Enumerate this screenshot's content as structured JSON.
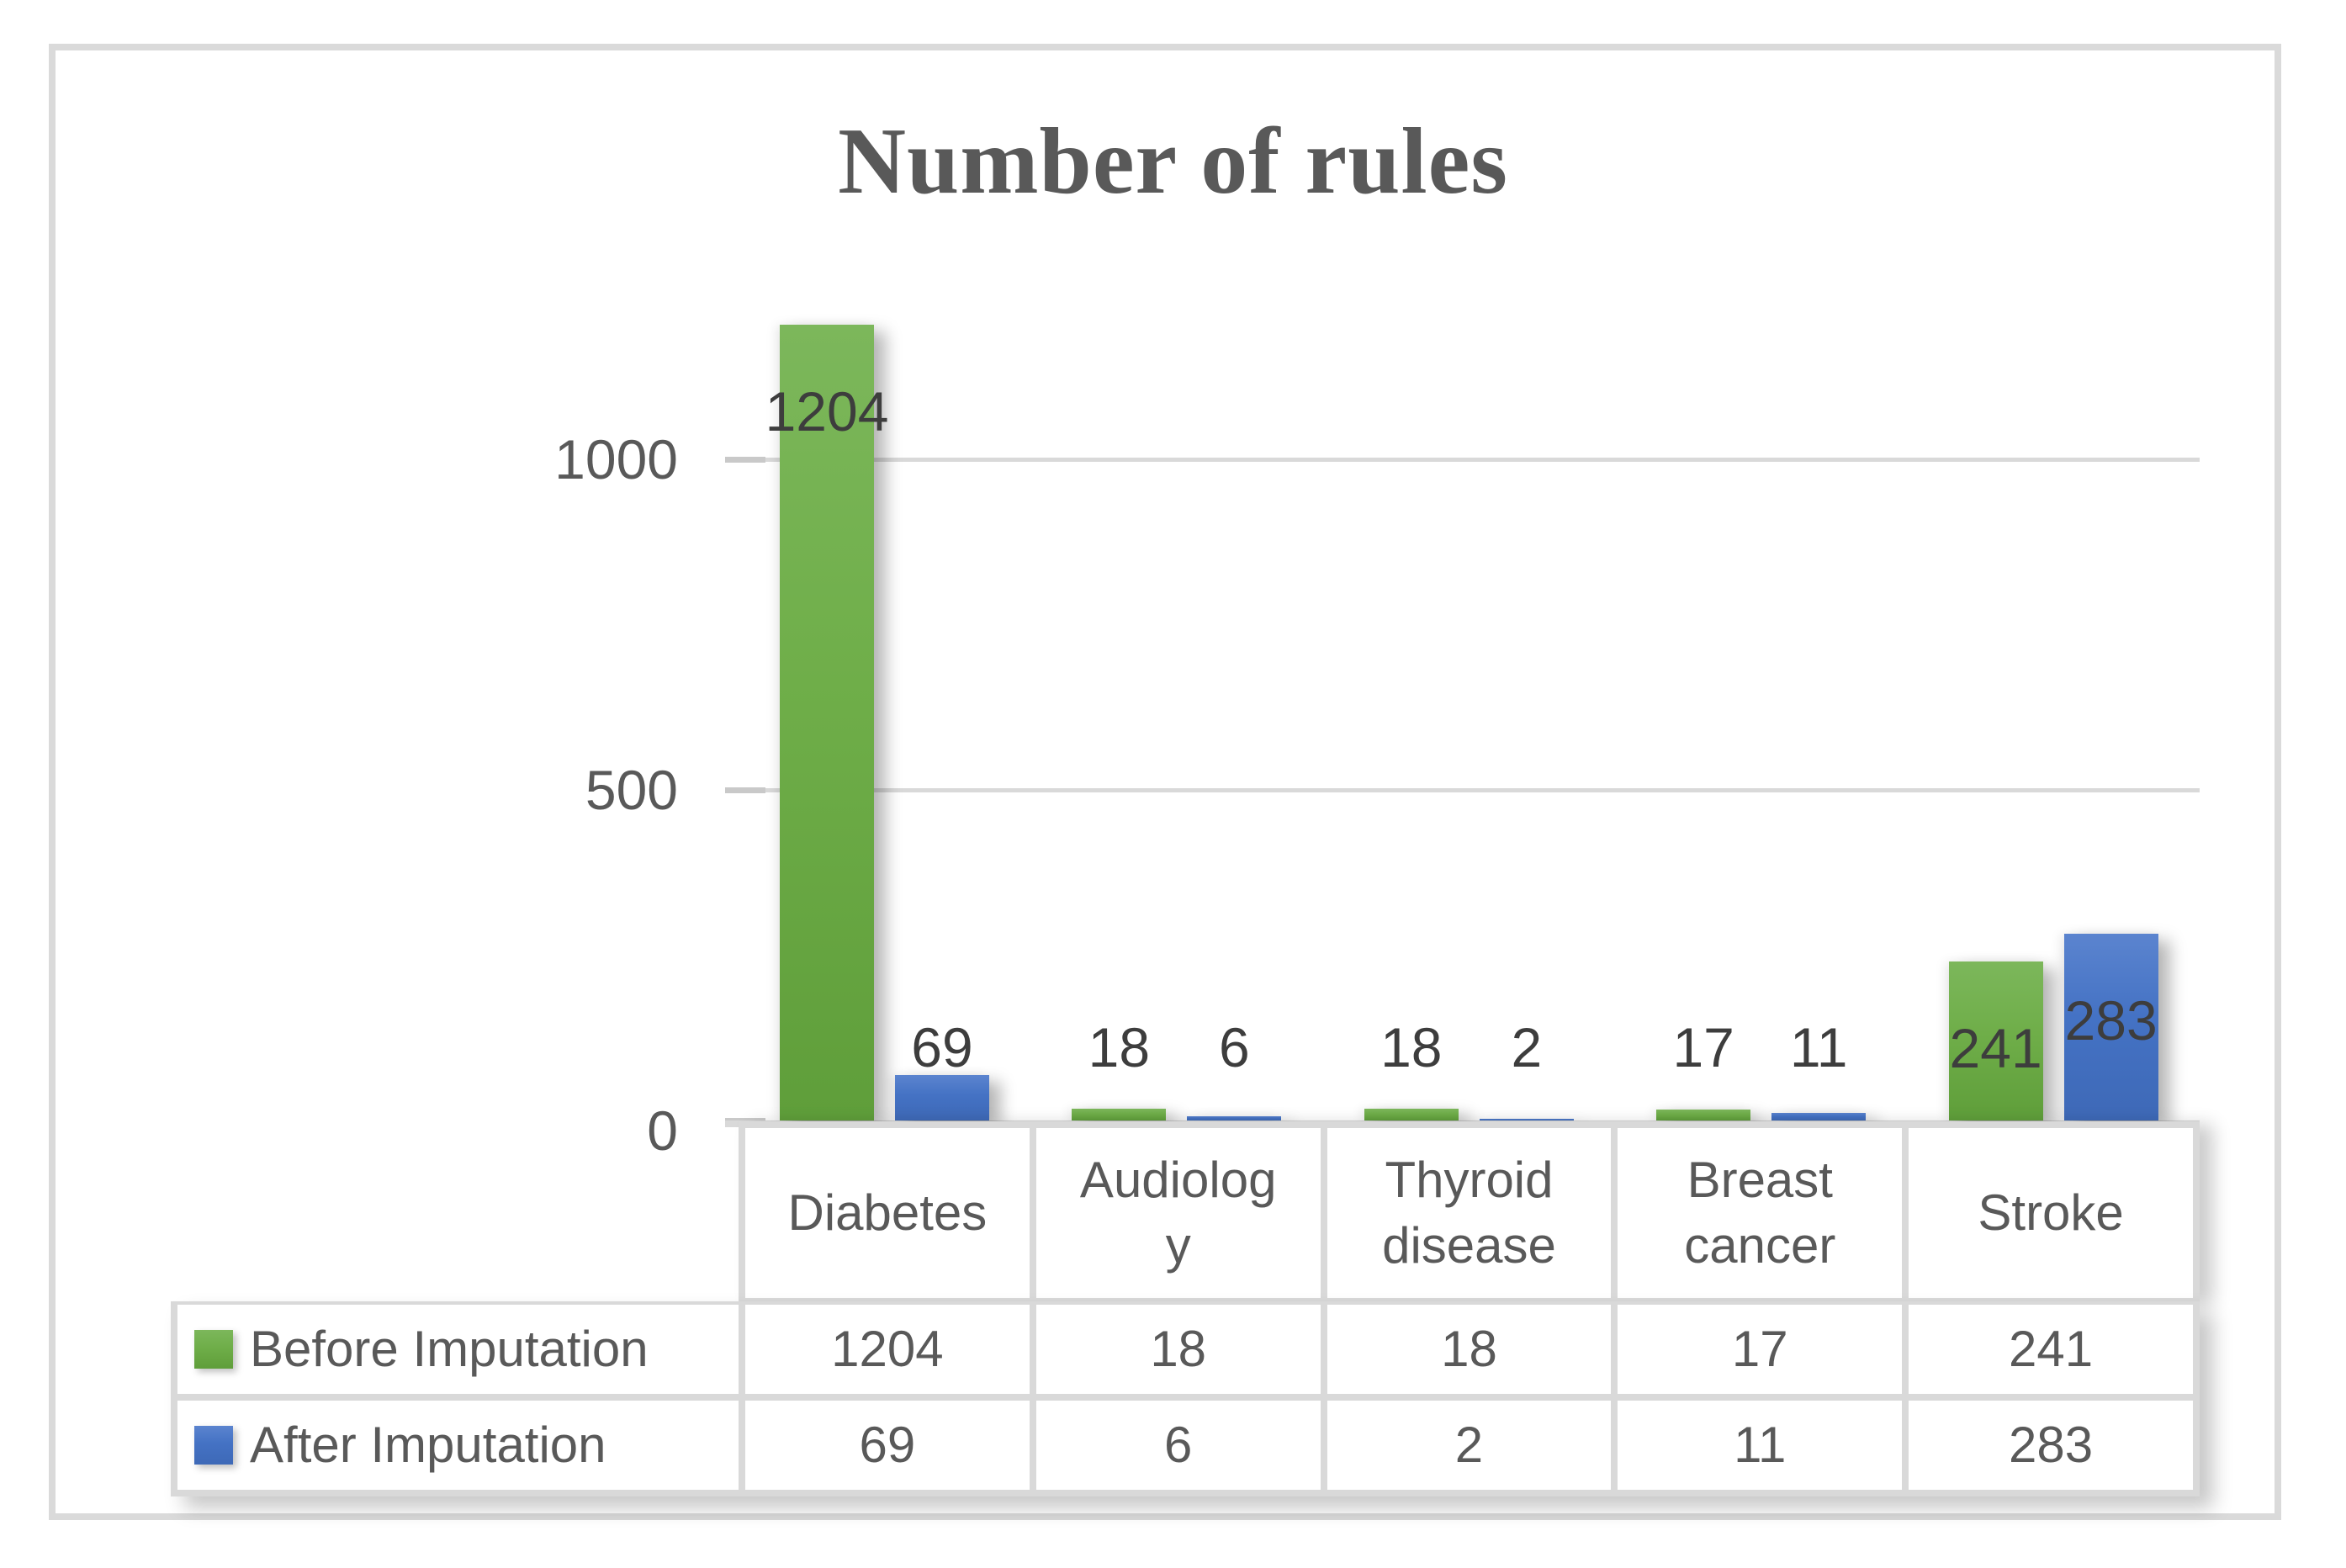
{
  "title": "Number of rules",
  "colors": {
    "green": "#6fae49",
    "green_top": "#7cb75b",
    "green_bottom": "#5f9e3a",
    "blue": "#4472c4",
    "blue_top": "#5b84cf",
    "blue_bottom": "#3e69b7",
    "grid": "#d9d9d9",
    "text": "#595959",
    "data_label_text": "#3d3d3d"
  },
  "chart_data": {
    "type": "bar",
    "title": "Number of rules",
    "categories": [
      "Diabetes",
      "Audiology",
      "Thyroid disease",
      "Breast cancer",
      "Stroke"
    ],
    "category_display_lines": [
      [
        "Diabetes"
      ],
      [
        "Audiolog",
        "y"
      ],
      [
        "Thyroid",
        "disease"
      ],
      [
        "Breast",
        "cancer"
      ],
      [
        "Stroke"
      ]
    ],
    "series": [
      {
        "name": "Before Imputation",
        "color_key": "green",
        "values": [
          1204,
          18,
          18,
          17,
          241
        ]
      },
      {
        "name": "After Imputation",
        "color_key": "blue",
        "values": [
          69,
          6,
          2,
          11,
          283
        ]
      }
    ],
    "data_labels": [
      {
        "text": "1204",
        "placement": "inside"
      },
      {
        "text": "18",
        "placement": "outside"
      },
      {
        "text": "18",
        "placement": "outside"
      },
      {
        "text": "17",
        "placement": "outside"
      },
      {
        "text": "241",
        "placement": "inside"
      },
      {
        "text": "69",
        "placement": "outside"
      },
      {
        "text": "6",
        "placement": "outside"
      },
      {
        "text": "2",
        "placement": "outside"
      },
      {
        "text": "11",
        "placement": "outside"
      },
      {
        "text": "283",
        "placement": "inside"
      }
    ],
    "xlabel": "",
    "ylabel": "",
    "ylim": [
      0,
      1250
    ],
    "yticks": [
      0,
      500,
      1000
    ],
    "grid": true,
    "legend_position": "table-left",
    "table_shown": true
  }
}
